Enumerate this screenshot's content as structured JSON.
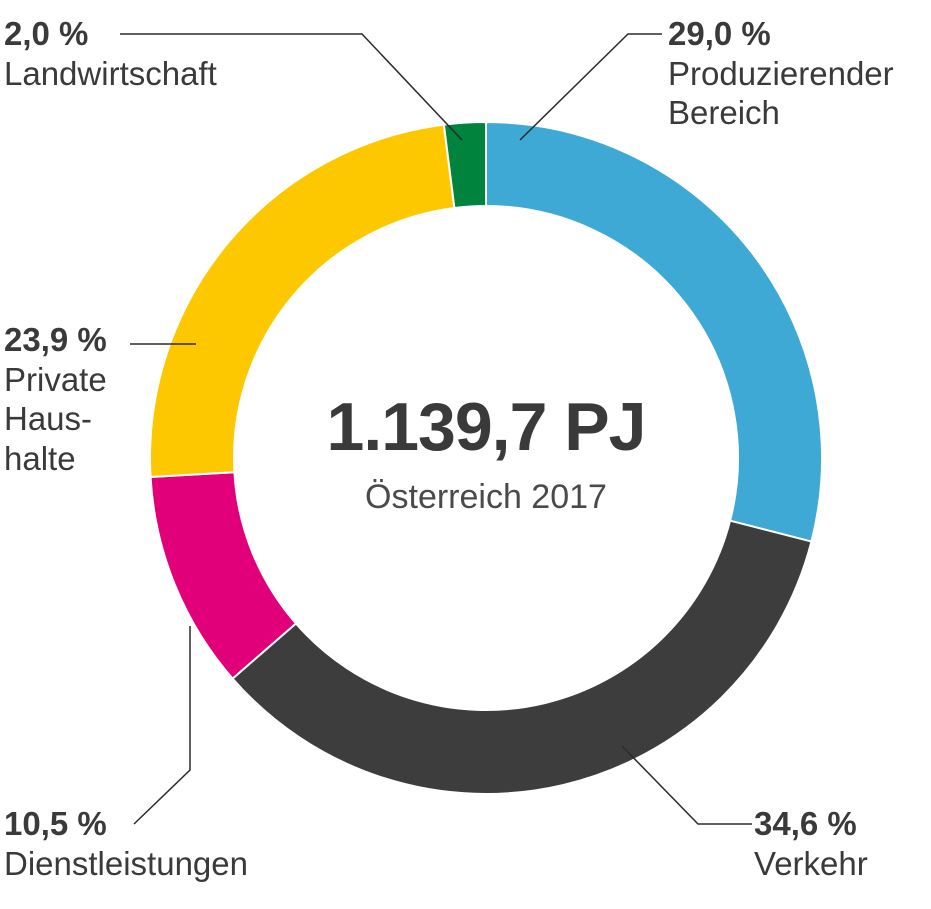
{
  "chart_data": {
    "type": "pie",
    "variant": "donut",
    "center_value": "1.139,7 PJ",
    "center_caption": "Österreich 2017",
    "slices": [
      {
        "label": "Produzierender\nBereich",
        "value_text": "29,0 %",
        "value": 29.0,
        "color": "#3fa9d5"
      },
      {
        "label": "Verkehr",
        "value_text": "34,6 %",
        "value": 34.6,
        "color": "#3d3d3d"
      },
      {
        "label": "Dienstleistungen",
        "value_text": "10,5 %",
        "value": 10.5,
        "color": "#e2007a"
      },
      {
        "label": "Private\nHaus-\nhalte",
        "value_text": "23,9 %",
        "value": 23.9,
        "color": "#fdc800"
      },
      {
        "label": "Landwirtschaft",
        "value_text": "2,0 %",
        "value": 2.0,
        "color": "#00843d"
      }
    ]
  }
}
